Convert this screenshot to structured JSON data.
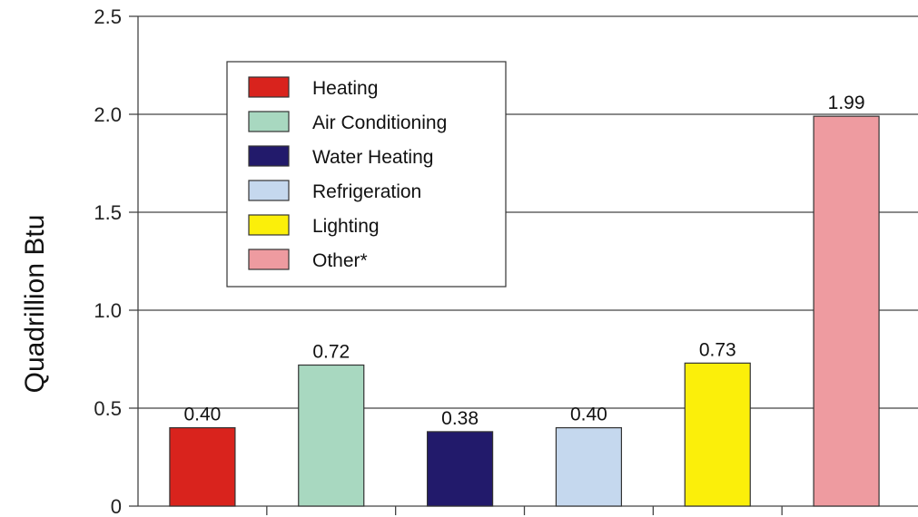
{
  "chart_data": {
    "type": "bar",
    "ylabel": "Quadrillion Btu",
    "xlabel": "",
    "ylim": [
      0,
      2.5
    ],
    "yticks": [
      {
        "value": 0,
        "label": "0"
      },
      {
        "value": 0.5,
        "label": "0.5"
      },
      {
        "value": 1.0,
        "label": "1.0"
      },
      {
        "value": 1.5,
        "label": "1.5"
      },
      {
        "value": 2.0,
        "label": "2.0"
      },
      {
        "value": 2.5,
        "label": "2.5"
      }
    ],
    "grid": true,
    "legend_position": "top-left",
    "categories": [
      "Heating",
      "Air Conditioning",
      "Water Heating",
      "Refrigeration",
      "Lighting",
      "Other*"
    ],
    "values": [
      0.4,
      0.72,
      0.38,
      0.4,
      0.73,
      1.99
    ],
    "value_labels": [
      "0.40",
      "0.72",
      "0.38",
      "0.40",
      "0.73",
      "1.99"
    ],
    "colors": [
      "#d9231d",
      "#a8d8c0",
      "#221a6b",
      "#c5d8ee",
      "#fbef0a",
      "#ee9ba0"
    ]
  }
}
